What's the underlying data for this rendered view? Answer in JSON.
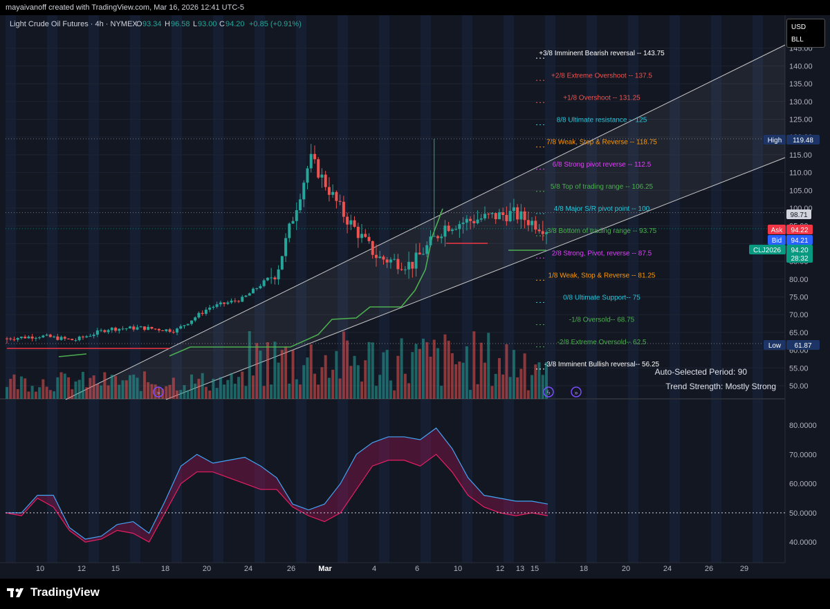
{
  "header": {
    "attribution": "mayaivanoff created with TradingView.com, Mar 16, 2026 12:41 UTC-5",
    "symbol_title": "Light Crude Oil Futures · 4h · NYMEX",
    "o_label": "O",
    "o_value": "93.34",
    "h_label": "H",
    "h_value": "96.58",
    "l_label": "L",
    "l_value": "93.00",
    "c_label": "C",
    "c_value": "94.20",
    "change": "+0.85 (+0.91%)"
  },
  "currency_box": {
    "currency": "USD",
    "unit": "BLL"
  },
  "price_tags": {
    "high_label": "High",
    "high_value": "119.48",
    "low_label": "Low",
    "low_value": "61.87",
    "last_value": "98.71",
    "ask_label": "Ask",
    "ask_value": "94.22",
    "bid_label": "Bid",
    "bid_value": "94.21",
    "contract_label": "CLJ2026",
    "contract_price": "94.20",
    "countdown": "28:32"
  },
  "info": {
    "period": "Auto-Selected Period: 90",
    "trend": "Trend Strength: Mostly Strong"
  },
  "brand": {
    "name": "TradingView"
  },
  "colors": {
    "up": "#26a69a",
    "down": "#ef5350",
    "background": "#131722",
    "ask": "#f23645",
    "bid": "#2962ff",
    "contract": "#089981",
    "supertrend_up": "#4caf50",
    "supertrend_down": "#f23645",
    "oscillator_line": "#42a5f5"
  },
  "chart_data": [
    {
      "type": "candlestick",
      "title": "Light Crude Oil Futures · 4h · NYMEX",
      "y_axis_ticks": [
        "145.00",
        "140.00",
        "135.00",
        "130.00",
        "125.00",
        "120.00",
        "115.00",
        "110.00",
        "105.00",
        "100.00",
        "95.00",
        "90.00",
        "85.00",
        "80.00",
        "75.00",
        "70.00",
        "65.00",
        "60.00",
        "55.00",
        "50.00"
      ],
      "x_axis_ticks": [
        "10",
        "12",
        "15",
        "18",
        "20",
        "24",
        "26",
        "Mar",
        "4",
        "6",
        "10",
        "12",
        "13",
        "15",
        "18",
        "20",
        "24",
        "26",
        "29"
      ],
      "ylim": [
        47,
        147
      ],
      "approx_close_path": [
        {
          "x": "Feb 8",
          "y": 63.3
        },
        {
          "x": "Feb 12",
          "y": 64.0
        },
        {
          "x": "Feb 17",
          "y": 62.8
        },
        {
          "x": "Feb 20",
          "y": 66.0
        },
        {
          "x": "Feb 24",
          "y": 66.3
        },
        {
          "x": "Feb 27",
          "y": 65.5
        },
        {
          "x": "Mar 2",
          "y": 72.0
        },
        {
          "x": "Mar 4",
          "y": 74.5
        },
        {
          "x": "Mar 6",
          "y": 82.0
        },
        {
          "x": "Mar 8",
          "y": 114.0
        },
        {
          "x": "Mar 9",
          "y": 98.0
        },
        {
          "x": "Mar 10",
          "y": 86.0
        },
        {
          "x": "Mar 11",
          "y": 84.0
        },
        {
          "x": "Mar 12",
          "y": 95.0
        },
        {
          "x": "Mar 13",
          "y": 97.0
        },
        {
          "x": "Mar 15",
          "y": 98.5
        },
        {
          "x": "Mar 16",
          "y": 94.2
        }
      ],
      "extremes": {
        "high": 119.48,
        "low": 61.87,
        "last": 94.2
      },
      "murrey_math_levels": [
        {
          "label": "+3/8 Imminent Bearish reversal --",
          "value": "143.75",
          "color": "#ffffff"
        },
        {
          "label": "+2/8 Extreme Overshoot --",
          "value": "137.5",
          "color": "#ef5350"
        },
        {
          "label": "+1/8 Overshoot --",
          "value": "131.25",
          "color": "#ef5350"
        },
        {
          "label": "8/8 Ultimate resistance --",
          "value": "125",
          "color": "#26c6da"
        },
        {
          "label": "7/8 Weak, Stop & Reverse --",
          "value": "118.75",
          "color": "#ff9800"
        },
        {
          "label": "6/8 Strong pivot reverse --",
          "value": "112.5",
          "color": "#e040fb"
        },
        {
          "label": "5/8 Top of trading range --",
          "value": "106.25",
          "color": "#4caf50"
        },
        {
          "label": "4/8 Major S/R pivot point --",
          "value": "100",
          "color": "#26c6da"
        },
        {
          "label": "3/8 Bottom of trading range --",
          "value": "93.75",
          "color": "#4caf50"
        },
        {
          "label": "2/8 Strong, Pivot, reverse --",
          "value": "87.5",
          "color": "#e040fb"
        },
        {
          "label": "1/8 Weak, Stop & Reverse --",
          "value": "81.25",
          "color": "#ff9800"
        },
        {
          "label": "0/8 Ultimate Support--",
          "value": "75",
          "color": "#26c6da"
        },
        {
          "label": "-1/8 Oversold--",
          "value": "68.75",
          "color": "#4caf50"
        },
        {
          "label": "-2/8 Extreme Oversold--",
          "value": "62.5",
          "color": "#4caf50"
        },
        {
          "label": "-3/8 Imminent Bullish reversal--",
          "value": "56.25",
          "color": "#ffffff"
        }
      ]
    },
    {
      "type": "line",
      "y_axis_ticks": [
        "80.0000",
        "70.0000",
        "60.0000",
        "50.0000",
        "40.0000"
      ],
      "ylim": [
        35,
        88
      ],
      "reference_line": 50,
      "series": [
        {
          "values": [
            50,
            50,
            56,
            56,
            45,
            41,
            42,
            46,
            47,
            43,
            54,
            66,
            70,
            67,
            68,
            69,
            66,
            62,
            53,
            51,
            53,
            60,
            70,
            74,
            76,
            76,
            75,
            79,
            72,
            62,
            56,
            55,
            54,
            54,
            53
          ]
        },
        {
          "values": [
            50,
            49,
            55,
            52,
            44,
            40,
            41,
            44,
            43,
            40,
            50,
            60,
            64,
            64,
            62,
            60,
            58,
            58,
            52,
            49,
            47,
            50,
            58,
            66,
            68,
            68,
            66,
            70,
            64,
            56,
            52,
            50,
            49,
            50,
            49
          ]
        }
      ]
    }
  ]
}
